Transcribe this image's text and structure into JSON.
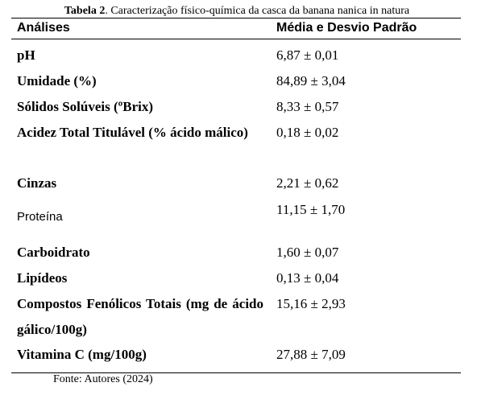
{
  "table": {
    "caption_label": "Tabela 2",
    "caption_text": ". Caracterização físico-química da casca da banana nanica in natura",
    "columns": [
      "Análises",
      "Média e Desvio Padrão"
    ],
    "rows": [
      {
        "label": "pH",
        "value": "6,87 ± 0,01"
      },
      {
        "label": "Umidade (%)",
        "value": "84,89 ± 3,04"
      },
      {
        "label": "Sólidos Solúveis (ºBrix)",
        "value": "8,33 ± 0,57"
      },
      {
        "label": "Acidez Total Titulável (% ácido málico)",
        "value": "0,18 ± 0,02"
      },
      {
        "label": "Cinzas",
        "value": "2,21 ± 0,62"
      },
      {
        "label": "Proteína",
        "value": "11,15 ± 1,70"
      },
      {
        "label": "Carboidrato",
        "value": "1,60 ± 0,07"
      },
      {
        "label": "Lipídeos",
        "value": "0,13 ± 0,04"
      },
      {
        "label": "Compostos Fenólicos Totais (mg de ácido gálico/100g)",
        "value": "15,16 ± 2,93"
      },
      {
        "label": "Vitamina C (mg/100g)",
        "value": "27,88 ± 7,09"
      }
    ],
    "footnote": "Fonte: Autores (2024)"
  }
}
